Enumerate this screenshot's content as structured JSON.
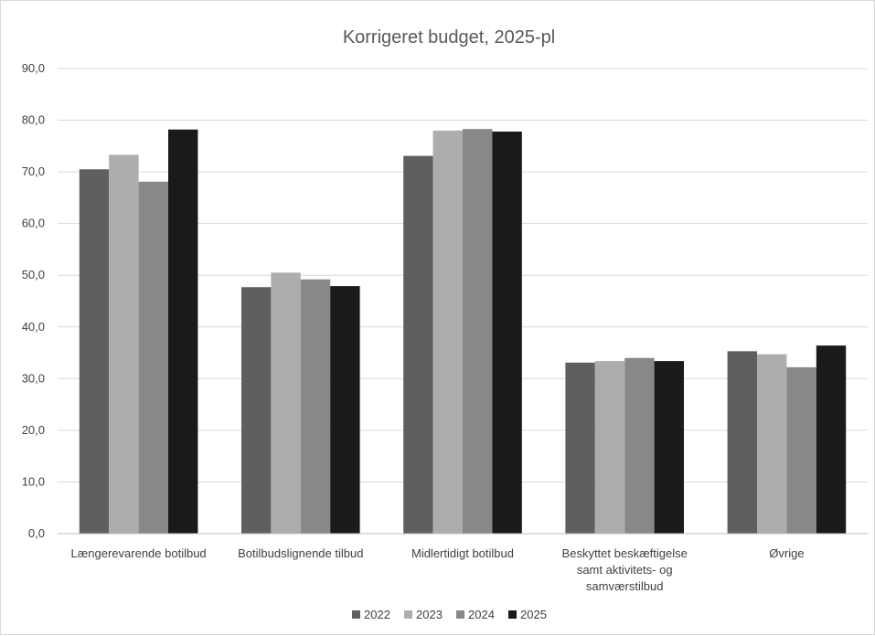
{
  "chart_data": {
    "type": "bar",
    "title": "Korrigeret budget, 2025-pl",
    "xlabel": "",
    "ylabel": "",
    "ylim": [
      0,
      90
    ],
    "yticks": [
      "0,0",
      "10,0",
      "20,0",
      "30,0",
      "40,0",
      "50,0",
      "60,0",
      "70,0",
      "80,0",
      "90,0"
    ],
    "grid": true,
    "legend_position": "bottom",
    "categories": [
      [
        "Længerevarende botilbud"
      ],
      [
        "Botilbudslignende tilbud"
      ],
      [
        "Midlertidigt botilbud"
      ],
      [
        "Beskyttet beskæftigelse",
        "samt aktivitets- og",
        "samværstilbud"
      ],
      [
        "Øvrige"
      ]
    ],
    "series": [
      {
        "name": "2022",
        "color": "#5f5f5f",
        "values": [
          70.5,
          47.7,
          73.1,
          33.1,
          35.3
        ]
      },
      {
        "name": "2023",
        "color": "#adadad",
        "values": [
          73.3,
          50.5,
          78.0,
          33.4,
          34.7
        ]
      },
      {
        "name": "2024",
        "color": "#888888",
        "values": [
          68.1,
          49.2,
          78.3,
          34.0,
          32.2
        ]
      },
      {
        "name": "2025",
        "color": "#1a1a1a",
        "values": [
          78.2,
          47.9,
          77.8,
          33.4,
          36.4
        ]
      }
    ]
  }
}
